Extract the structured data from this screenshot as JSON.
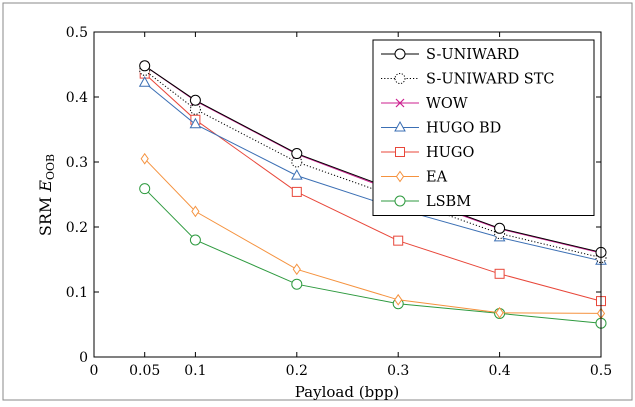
{
  "chart_data": {
    "type": "line",
    "xlabel": "Payload (bpp)",
    "ylabel_main": "SRM ",
    "ylabel_italic": "E",
    "ylabel_sub": "OOB",
    "xlim": [
      0,
      0.5
    ],
    "ylim": [
      0,
      0.5
    ],
    "x_ticks": [
      0,
      0.05,
      0.1,
      0.2,
      0.3,
      0.4,
      0.5
    ],
    "x_tick_labels": [
      "0",
      "0.05",
      "0.1",
      "0.2",
      "0.3",
      "0.4",
      "0.5"
    ],
    "y_ticks": [
      0,
      0.1,
      0.2,
      0.3,
      0.4,
      0.5
    ],
    "y_tick_labels": [
      "0",
      "0.1",
      "0.2",
      "0.3",
      "0.4",
      "0.5"
    ],
    "grid": false,
    "legend_position": "top-right",
    "x": [
      0.05,
      0.1,
      0.2,
      0.3,
      0.4,
      0.5
    ],
    "series": [
      {
        "name": "S-UNIWARD",
        "color": "#000000",
        "marker": "circle",
        "dash": "solid",
        "values": [
          0.448,
          0.395,
          0.313,
          0.255,
          0.198,
          0.161
        ]
      },
      {
        "name": "S-UNIWARD STC",
        "color": "#000000",
        "marker": "circle-dotted",
        "dash": "dotted",
        "values": [
          0.441,
          0.381,
          0.3,
          0.245,
          0.19,
          0.153
        ]
      },
      {
        "name": "WOW",
        "color": "#cc1f8f",
        "marker": "cross",
        "dash": "solid",
        "values": [
          0.448,
          0.394,
          0.312,
          0.253,
          0.197,
          0.16
        ]
      },
      {
        "name": "HUGO BD",
        "color": "#3b6fb4",
        "marker": "triangle",
        "dash": "solid",
        "values": [
          0.422,
          0.358,
          0.279,
          0.228,
          0.184,
          0.148
        ]
      },
      {
        "name": "HUGO",
        "color": "#e8473a",
        "marker": "square",
        "dash": "solid",
        "values": [
          0.436,
          0.365,
          0.254,
          0.179,
          0.128,
          0.086
        ]
      },
      {
        "name": "EA",
        "color": "#f5923e",
        "marker": "diamond",
        "dash": "solid",
        "values": [
          0.305,
          0.224,
          0.135,
          0.088,
          0.068,
          0.067
        ]
      },
      {
        "name": "LSBM",
        "color": "#2e9a3f",
        "marker": "circle",
        "dash": "solid",
        "values": [
          0.259,
          0.18,
          0.112,
          0.082,
          0.067,
          0.052
        ]
      }
    ]
  }
}
